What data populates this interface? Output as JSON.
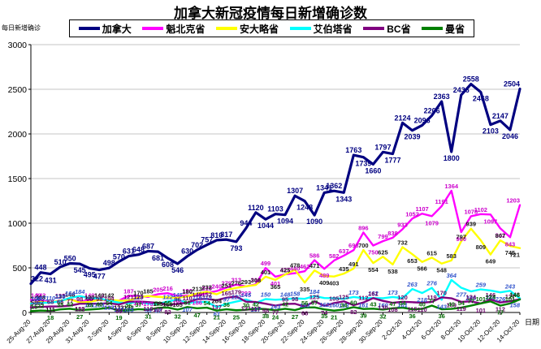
{
  "chart_data": {
    "type": "line",
    "title": "加拿大新冠疫情每日新增确诊数",
    "xlabel": "日期",
    "ylabel": "每日新增确诊",
    "ylim": [
      0,
      3000
    ],
    "ytick_interval": 500,
    "grid": true,
    "legend_position": "top",
    "xtick_every": 2,
    "x": [
      "25-Aug-20",
      "26-Aug-20",
      "27-Aug-20",
      "28-Aug-20",
      "29-Aug-20",
      "30-Aug-20",
      "31-Aug-20",
      "1-Sep-20",
      "2-Sep-20",
      "3-Sep-20",
      "4-Sep-20",
      "5-Sep-20",
      "6-Sep-20",
      "7-Sep-20",
      "8-Sep-20",
      "9-Sep-20",
      "10-Sep-20",
      "11-Sep-20",
      "12-Sep-20",
      "13-Sep-20",
      "14-Sep-20",
      "15-Sep-20",
      "16-Sep-20",
      "17-Sep-20",
      "18-Sep-20",
      "19-Sep-20",
      "20-Sep-20",
      "21-Sep-20",
      "22-Sep-20",
      "23-Sep-20",
      "24-Sep-20",
      "25-Sep-20",
      "26-Sep-20",
      "27-Sep-20",
      "28-Sep-20",
      "29-Sep-20",
      "30-Sep-20",
      "1-Oct-20",
      "2-Oct-20",
      "3-Oct-20",
      "4-Oct-20",
      "5-Oct-20",
      "6-Oct-20",
      "7-Oct-20",
      "8-Oct-20",
      "9-Oct-20",
      "10-Oct-20",
      "11-Oct-20",
      "12-Oct-20",
      "13-Oct-20",
      "14-Oct-20"
    ],
    "series": [
      {
        "name": "加拿大",
        "color": "#000080",
        "label_color": "#000080",
        "width": 3.2,
        "label_size": 9,
        "values": [
          322,
          448,
          431,
          510,
          550,
          545,
          495,
          477,
          498,
          570,
          631,
          648,
          687,
          681,
          608,
          546,
          630,
          702,
          757,
          810,
          817,
          793,
          944,
          1120,
          1044,
          1103,
          1094,
          1307,
          1248,
          1090,
          1341,
          1362,
          1343,
          1763,
          1739,
          1660,
          1797,
          1777,
          2124,
          2039,
          2096,
          2206,
          2363,
          1800,
          2436,
          2558,
          2468,
          2103,
          2147,
          2046,
          2504
        ]
      },
      {
        "name": "魁北克省",
        "color": "#FF00FF",
        "label_color": "#CC00CC",
        "width": 2.4,
        "label_size": 7.5,
        "values": [
          140,
          142,
          111,
          135,
          148,
          120,
          140,
          142,
          133,
          132,
          187,
          184,
          175,
          205,
          216,
          185,
          190,
          186,
          219,
          240,
          279,
          313,
          292,
          315,
          499,
          401,
          427,
          440,
          462,
          586,
          489,
          582,
          637,
          698,
          896,
          750,
          799,
          838,
          933,
          1052,
          1107,
          1079,
          1191,
          1364,
          900,
          1078,
          1102,
          1097,
          942,
          843,
          1203
        ]
      },
      {
        "name": "安大略省",
        "color": "#FFFF00",
        "label_color": "#1a1a1a",
        "width": 2.4,
        "label_size": 7.5,
        "values": [
          105,
          118,
          111,
          133,
          148,
          112,
          120,
          140,
          142,
          133,
          132,
          170,
          185,
          175,
          169,
          165,
          180,
          213,
          232,
          204,
          251,
          276,
          293,
          308,
          401,
          365,
          425,
          478,
          335,
          471,
          409,
          403,
          435,
          491,
          700,
          554,
          625,
          538,
          732,
          653,
          566,
          615,
          548,
          583,
          797,
          939,
          809,
          649,
          807,
          745,
          721
        ]
      },
      {
        "name": "艾伯塔省",
        "color": "#00FFFF",
        "label_color": "#3355CC",
        "italic": true,
        "width": 2.4,
        "label_size": 7.5,
        "values": [
          100,
          107,
          110,
          126,
          164,
          184,
          161,
          158,
          133,
          111,
          105,
          119,
          98,
          97,
          122,
          145,
          107,
          116,
          119,
          61,
          97,
          122,
          145,
          107,
          150,
          143,
          148,
          158,
          153,
          184,
          162,
          160,
          153,
          173,
          161,
          162,
          160,
          173,
          161,
          263,
          218,
          276,
          143,
          364,
          277,
          236,
          259,
          246,
          226,
          243,
          158
        ]
      },
      {
        "name": "BC省",
        "color": "#800080",
        "label_color": "#660066",
        "width": 2.4,
        "label_size": 7.5,
        "values": [
          58,
          62,
          68,
          68,
          77,
          98,
          98,
          98,
          104,
          89,
          121,
          123,
          116,
          107,
          83,
          96,
          110,
          149,
          152,
          137,
          165,
          179,
          121,
          117,
          98,
          77,
          95,
          98,
          66,
          125,
          74,
          105,
          125,
          82,
          112,
          161,
          130,
          108,
          120,
          115,
          110,
          119,
          170,
          159,
          119,
          124,
          101,
          146,
          112,
          127,
          148
        ]
      },
      {
        "name": "曼省",
        "color": "#008000",
        "label_color": "#006600",
        "width": 2.4,
        "label_size": 7.5,
        "values": [
          15,
          22,
          18,
          35,
          42,
          27,
          33,
          40,
          54,
          19,
          25,
          37,
          31,
          52,
          55,
          32,
          61,
          47,
          54,
          21,
          36,
          25,
          30,
          42,
          38,
          24,
          42,
          27,
          56,
          57,
          35,
          21,
          34,
          60,
          39,
          43,
          32,
          47,
          54,
          36,
          40,
          77,
          36,
          40,
          54,
          77,
          101,
          124,
          77,
          101,
          146
        ]
      }
    ]
  }
}
